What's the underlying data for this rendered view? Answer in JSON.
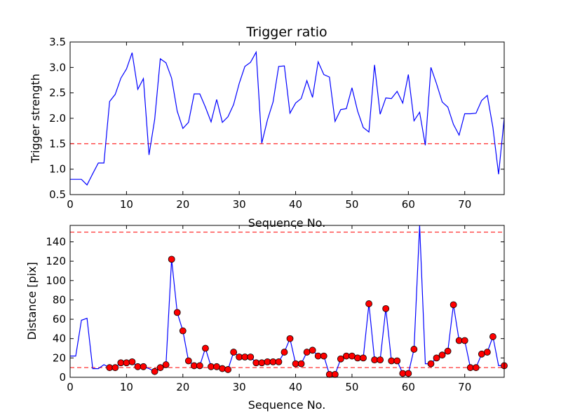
{
  "chart_data": [
    {
      "type": "line",
      "title": "Trigger ratio",
      "xlabel": "Sequence No.",
      "ylabel": "Trigger strength",
      "xlim": [
        0,
        77
      ],
      "ylim": [
        0.5,
        3.5
      ],
      "xticks": [
        0,
        10,
        20,
        30,
        40,
        50,
        60,
        70
      ],
      "yticks": [
        0.5,
        1.0,
        1.5,
        2.0,
        2.5,
        3.0,
        3.5
      ],
      "ytick_labels": [
        "0.5",
        "1.0",
        "1.5",
        "2.0",
        "2.5",
        "3.0",
        "3.5"
      ],
      "grid": false,
      "series": [
        {
          "color": "#0000ff",
          "x": [
            0,
            1,
            2,
            3,
            4,
            5,
            6,
            7,
            8,
            9,
            10,
            11,
            12,
            13,
            14,
            15,
            16,
            17,
            18,
            19,
            20,
            21,
            22,
            23,
            24,
            25,
            26,
            27,
            28,
            29,
            30,
            31,
            32,
            33,
            34,
            35,
            36,
            37,
            38,
            39,
            40,
            41,
            42,
            43,
            44,
            45,
            46,
            47,
            48,
            49,
            50,
            51,
            52,
            53,
            54,
            55,
            56,
            57,
            58,
            59,
            60,
            61,
            62,
            63,
            64,
            65,
            66,
            67,
            68,
            69,
            70,
            71,
            72,
            73,
            74,
            75,
            76,
            77
          ],
          "y": [
            0.8,
            0.8,
            0.8,
            0.69,
            0.91,
            1.12,
            1.12,
            2.33,
            2.47,
            2.79,
            2.97,
            3.29,
            2.57,
            2.78,
            1.28,
            1.98,
            3.17,
            3.09,
            2.79,
            2.14,
            1.8,
            1.92,
            2.48,
            2.48,
            2.22,
            1.93,
            2.37,
            1.92,
            2.03,
            2.27,
            2.69,
            3.02,
            3.1,
            3.3,
            1.51,
            1.97,
            2.32,
            3.02,
            3.03,
            2.1,
            2.3,
            2.39,
            2.74,
            2.41,
            3.11,
            2.86,
            2.81,
            1.94,
            2.17,
            2.19,
            2.6,
            2.14,
            1.82,
            1.73,
            3.05,
            2.08,
            2.4,
            2.39,
            2.53,
            2.3,
            2.86,
            1.95,
            2.12,
            1.47,
            3.0,
            2.68,
            2.32,
            2.22,
            1.88,
            1.67,
            2.09,
            2.09,
            2.1,
            2.35,
            2.45,
            1.82,
            0.9,
            2.0
          ]
        }
      ],
      "hlines": [
        {
          "y": 1.5,
          "color": "#ff0000",
          "style": "dashed"
        }
      ]
    },
    {
      "type": "line",
      "title": "",
      "xlabel": "Sequence No.",
      "ylabel": "Distance [pix]",
      "xlim": [
        0,
        77
      ],
      "ylim": [
        0,
        157
      ],
      "xticks": [
        0,
        10,
        20,
        30,
        40,
        50,
        60,
        70
      ],
      "yticks": [
        0,
        20,
        40,
        60,
        80,
        100,
        120,
        140
      ],
      "ytick_labels": [
        "0",
        "20",
        "40",
        "60",
        "80",
        "100",
        "120",
        "140"
      ],
      "grid": false,
      "series": [
        {
          "color": "#0000ff",
          "marker_color": "#ff0000",
          "x": [
            0,
            1,
            2,
            3,
            4,
            5,
            6,
            7,
            8,
            9,
            10,
            11,
            12,
            13,
            14,
            15,
            16,
            17,
            18,
            19,
            20,
            21,
            22,
            23,
            24,
            25,
            26,
            27,
            28,
            29,
            30,
            31,
            32,
            33,
            34,
            35,
            36,
            37,
            38,
            39,
            40,
            41,
            42,
            43,
            44,
            45,
            46,
            47,
            48,
            49,
            50,
            51,
            52,
            53,
            54,
            55,
            56,
            57,
            58,
            59,
            60,
            61,
            62,
            63,
            64,
            65,
            66,
            67,
            68,
            69,
            70,
            71,
            72,
            73,
            74,
            75,
            76,
            77
          ],
          "y": [
            22,
            22,
            59,
            61,
            9,
            9,
            13,
            10,
            10,
            15,
            15,
            16,
            11,
            11,
            9,
            6,
            10,
            13,
            122,
            67,
            48,
            17,
            12,
            12,
            30,
            11,
            11,
            9,
            8,
            26,
            21,
            21,
            21,
            15,
            15,
            16,
            16,
            16,
            26,
            40,
            14,
            14,
            26,
            28,
            22,
            22,
            3,
            3,
            19,
            22,
            22,
            20,
            20,
            76,
            18,
            18,
            71,
            17,
            17,
            4,
            4,
            29,
            157,
            14,
            14,
            20,
            23,
            27,
            75,
            38,
            38,
            10,
            10,
            24,
            26,
            42,
            12,
            12
          ],
          "markers": [
            false,
            false,
            false,
            false,
            false,
            false,
            false,
            true,
            true,
            true,
            true,
            true,
            true,
            true,
            false,
            true,
            true,
            true,
            true,
            true,
            true,
            true,
            true,
            true,
            true,
            true,
            true,
            true,
            true,
            true,
            true,
            true,
            true,
            true,
            true,
            true,
            true,
            true,
            true,
            true,
            true,
            true,
            true,
            true,
            true,
            true,
            true,
            true,
            true,
            true,
            true,
            true,
            true,
            true,
            true,
            true,
            true,
            true,
            true,
            true,
            true,
            true,
            false,
            false,
            true,
            true,
            true,
            true,
            true,
            true,
            true,
            true,
            true,
            true,
            true,
            true,
            false,
            true
          ]
        }
      ],
      "hlines": [
        {
          "y": 150,
          "color": "#ff0000",
          "style": "dashed"
        },
        {
          "y": 10,
          "color": "#ff0000",
          "style": "dashed"
        }
      ]
    }
  ]
}
